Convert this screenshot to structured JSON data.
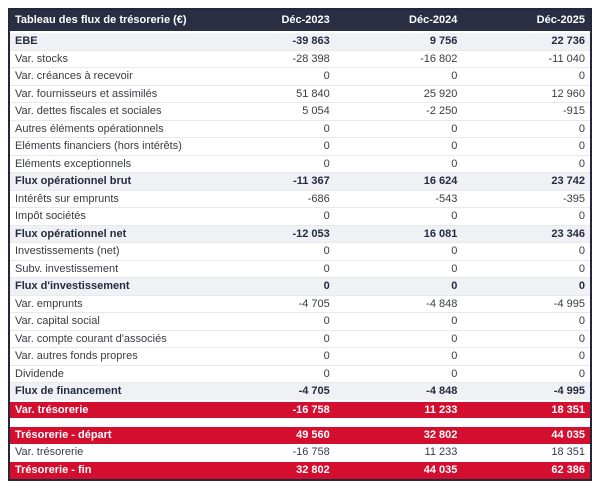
{
  "table": {
    "title": "Tableau des flux de trésorerie (€)",
    "columns": [
      "Déc-2023",
      "Déc-2024",
      "Déc-2025"
    ],
    "sections": [
      {
        "name": "flux-de-tresorerie",
        "rows": [
          {
            "label": "EBE",
            "values": [
              "-39 863",
              "9 756",
              "22 736"
            ],
            "style": "subtotal"
          },
          {
            "label": "Var. stocks",
            "values": [
              "-28 398",
              "-16 802",
              "-11 040"
            ],
            "style": "normal"
          },
          {
            "label": "Var. créances à recevoir",
            "values": [
              "0",
              "0",
              "0"
            ],
            "style": "normal"
          },
          {
            "label": "Var. fournisseurs et assimilés",
            "values": [
              "51 840",
              "25 920",
              "12 960"
            ],
            "style": "normal"
          },
          {
            "label": "Var. dettes fiscales et sociales",
            "values": [
              "5 054",
              "-2 250",
              "-915"
            ],
            "style": "normal"
          },
          {
            "label": "Autres éléments opérationnels",
            "values": [
              "0",
              "0",
              "0"
            ],
            "style": "normal"
          },
          {
            "label": "Eléments financiers (hors intérêts)",
            "values": [
              "0",
              "0",
              "0"
            ],
            "style": "normal"
          },
          {
            "label": "Eléments exceptionnels",
            "values": [
              "0",
              "0",
              "0"
            ],
            "style": "normal"
          },
          {
            "label": "Flux opérationnel brut",
            "values": [
              "-11 367",
              "16 624",
              "23 742"
            ],
            "style": "subtotal"
          },
          {
            "label": "Intérêts sur emprunts",
            "values": [
              "-686",
              "-543",
              "-395"
            ],
            "style": "normal"
          },
          {
            "label": "Impôt sociétés",
            "values": [
              "0",
              "0",
              "0"
            ],
            "style": "normal"
          },
          {
            "label": "Flux opérationnel net",
            "values": [
              "-12 053",
              "16 081",
              "23 346"
            ],
            "style": "subtotal"
          },
          {
            "label": "Investissements (net)",
            "values": [
              "0",
              "0",
              "0"
            ],
            "style": "normal"
          },
          {
            "label": "Subv. investissement",
            "values": [
              "0",
              "0",
              "0"
            ],
            "style": "normal"
          },
          {
            "label": "Flux d'investissement",
            "values": [
              "0",
              "0",
              "0"
            ],
            "style": "subtotal"
          },
          {
            "label": "Var. emprunts",
            "values": [
              "-4 705",
              "-4 848",
              "-4 995"
            ],
            "style": "normal"
          },
          {
            "label": "Var. capital social",
            "values": [
              "0",
              "0",
              "0"
            ],
            "style": "normal"
          },
          {
            "label": "Var. compte courant d'associés",
            "values": [
              "0",
              "0",
              "0"
            ],
            "style": "normal"
          },
          {
            "label": "Var. autres fonds propres",
            "values": [
              "0",
              "0",
              "0"
            ],
            "style": "normal"
          },
          {
            "label": "Dividende",
            "values": [
              "0",
              "0",
              "0"
            ],
            "style": "normal"
          },
          {
            "label": "Flux de financement",
            "values": [
              "-4 705",
              "-4 848",
              "-4 995"
            ],
            "style": "subtotal"
          },
          {
            "label": "Var. trésorerie",
            "values": [
              "-16 758",
              "11 233",
              "18 351"
            ],
            "style": "highlight"
          }
        ]
      },
      {
        "name": "tresorerie",
        "rows": [
          {
            "label": "Trésorerie - départ",
            "values": [
              "49 560",
              "32 802",
              "44 035"
            ],
            "style": "highlight"
          },
          {
            "label": "Var. trésorerie",
            "values": [
              "-16 758",
              "11 233",
              "18 351"
            ],
            "style": "normal"
          },
          {
            "label": "Trésorerie - fin",
            "values": [
              "32 802",
              "44 035",
              "62 386"
            ],
            "style": "highlight"
          }
        ]
      }
    ]
  },
  "colors": {
    "header_bg": "#2a2e43",
    "header_text": "#ffffff",
    "subtotal_bg": "#eff1f5",
    "subtotal_text": "#262b40",
    "highlight_bg": "#d40e2e",
    "highlight_text": "#ffffff",
    "body_text": "#3a3b42",
    "row_border": "#e7e9ed",
    "outer_border": "#23273c"
  }
}
